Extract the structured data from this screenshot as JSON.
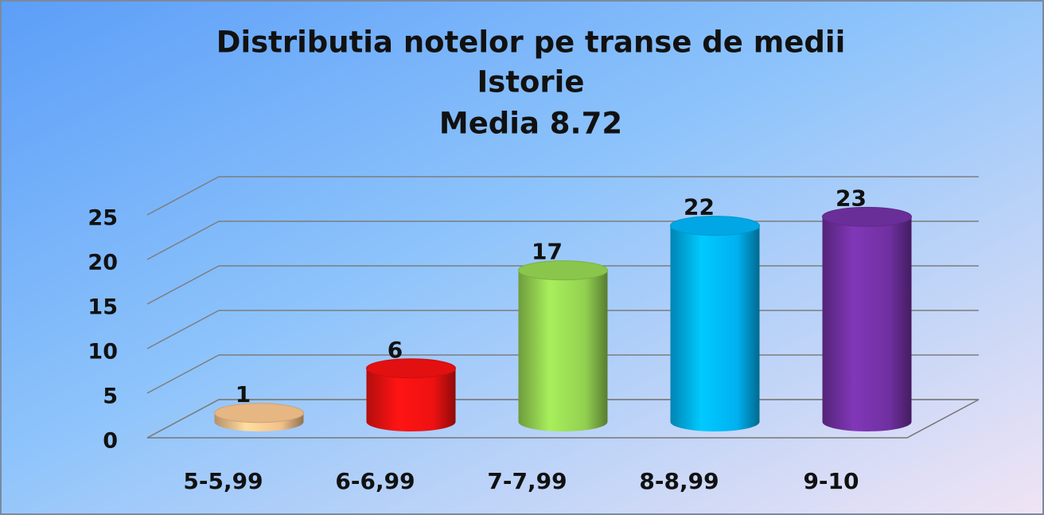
{
  "chart_data": {
    "type": "bar3d",
    "title": "Distributia notelor pe transe de medii",
    "subtitles": [
      "Istorie",
      "Media 8.72"
    ],
    "categories": [
      "5-5,99",
      "6-6,99",
      "7-7,99",
      "8-8,99",
      "9-10"
    ],
    "values": [
      1,
      6,
      17,
      22,
      23
    ],
    "colors": [
      "#f2c08a",
      "#ee1111",
      "#92d050",
      "#00b0f0",
      "#7030a0"
    ],
    "ylim": [
      0,
      25
    ],
    "yticks": [
      0,
      5,
      10,
      15,
      20,
      25
    ],
    "grid": true
  }
}
